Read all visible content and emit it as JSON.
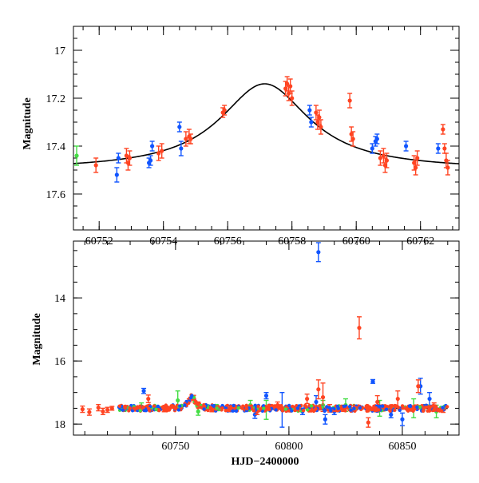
{
  "chart_data": [
    {
      "type": "scatter",
      "panel": "top",
      "ylabel": "Magnitude",
      "xlabel": "",
      "xlim": [
        60751.2,
        60763.2
      ],
      "ylim": [
        17.75,
        16.9
      ],
      "y_inverted": true,
      "xticks": [
        60752,
        60754,
        60756,
        60758,
        60760,
        60762
      ],
      "yticks": [
        17,
        17.2,
        17.4,
        17.6
      ],
      "model_curve": {
        "color": "#000000",
        "base": 17.5,
        "peak_mag": 17.14,
        "peak_x": 60757.15
      },
      "series": [
        {
          "color": "#ff4422",
          "points": [
            [
              60751.9,
              17.48,
              0.03
            ],
            [
              60752.85,
              17.44,
              0.03
            ],
            [
              60752.9,
              17.47,
              0.03
            ],
            [
              60752.95,
              17.45,
              0.03
            ],
            [
              60753.85,
              17.43,
              0.03
            ],
            [
              60753.95,
              17.42,
              0.03
            ],
            [
              60754.7,
              17.37,
              0.03
            ],
            [
              60754.8,
              17.36,
              0.03
            ],
            [
              60754.85,
              17.37,
              0.02
            ],
            [
              60755.85,
              17.26,
              0.02
            ],
            [
              60755.9,
              17.25,
              0.02
            ],
            [
              60757.8,
              17.16,
              0.03
            ],
            [
              60757.85,
              17.14,
              0.03
            ],
            [
              60757.9,
              17.18,
              0.03
            ],
            [
              60757.95,
              17.15,
              0.03
            ],
            [
              60758.0,
              17.2,
              0.03
            ],
            [
              60758.75,
              17.26,
              0.03
            ],
            [
              60758.8,
              17.3,
              0.03
            ],
            [
              60758.85,
              17.28,
              0.03
            ],
            [
              60758.9,
              17.32,
              0.03
            ],
            [
              60759.8,
              17.21,
              0.03
            ],
            [
              60759.85,
              17.35,
              0.03
            ],
            [
              60759.9,
              17.37,
              0.03
            ],
            [
              60760.75,
              17.45,
              0.03
            ],
            [
              60760.85,
              17.44,
              0.03
            ],
            [
              60760.9,
              17.48,
              0.03
            ],
            [
              60760.95,
              17.46,
              0.03
            ],
            [
              60761.8,
              17.47,
              0.03
            ],
            [
              60761.85,
              17.49,
              0.03
            ],
            [
              60761.9,
              17.45,
              0.03
            ],
            [
              60762.7,
              17.33,
              0.02
            ],
            [
              60762.75,
              17.41,
              0.02
            ],
            [
              60762.8,
              17.46,
              0.03
            ],
            [
              60762.85,
              17.49,
              0.03
            ]
          ]
        },
        {
          "color": "#1155ff",
          "points": [
            [
              60752.55,
              17.52,
              0.03
            ],
            [
              60752.6,
              17.45,
              0.02
            ],
            [
              60753.55,
              17.47,
              0.02
            ],
            [
              60753.6,
              17.46,
              0.02
            ],
            [
              60753.65,
              17.4,
              0.02
            ],
            [
              60754.5,
              17.32,
              0.02
            ],
            [
              60754.55,
              17.41,
              0.03
            ],
            [
              60758.55,
              17.25,
              0.02
            ],
            [
              60758.6,
              17.3,
              0.02
            ],
            [
              60760.5,
              17.41,
              0.02
            ],
            [
              60760.6,
              17.38,
              0.02
            ],
            [
              60760.65,
              17.37,
              0.02
            ],
            [
              60761.55,
              17.4,
              0.02
            ],
            [
              60762.55,
              17.41,
              0.02
            ]
          ]
        },
        {
          "color": "#44dd44",
          "points": [
            [
              60751.3,
              17.44,
              0.04
            ]
          ]
        }
      ]
    },
    {
      "type": "scatter",
      "panel": "bottom",
      "ylabel": "Magnitude",
      "xlabel": "HJD−2400000",
      "xlim": [
        60705,
        60875
      ],
      "ylim": [
        18.35,
        12.2
      ],
      "y_inverted": true,
      "xticks": [
        60750,
        60800,
        60850
      ],
      "yticks": [
        14,
        16,
        18
      ],
      "model_curve": {
        "color": "#000000",
        "from_x": 60725,
        "to_x": 60870,
        "base": 17.5,
        "peak_mag": 17.14,
        "peak_x": 60757.15
      },
      "series": [
        {
          "color": "#ff4422",
          "points": [
            [
              60709,
              17.53,
              0.1
            ],
            [
              60712,
              17.62,
              0.1
            ],
            [
              60716,
              17.48,
              0.1
            ],
            [
              60718,
              17.6,
              0.1
            ],
            [
              60720,
              17.55,
              0.08
            ],
            [
              60722,
              17.5,
              0.06
            ],
            [
              60732,
              17.52,
              0.07
            ],
            [
              60736,
              17.5,
              0.07
            ],
            [
              60738,
              17.2,
              0.12
            ],
            [
              60745,
              17.55,
              0.06
            ],
            [
              60752,
              17.48,
              0.05
            ],
            [
              60756,
              17.25,
              0.05
            ],
            [
              60758,
              17.15,
              0.06
            ],
            [
              60760,
              17.35,
              0.05
            ],
            [
              60766,
              17.55,
              0.06
            ],
            [
              60775,
              17.53,
              0.06
            ],
            [
              60786,
              17.6,
              0.1
            ],
            [
              60795,
              17.4,
              0.1
            ],
            [
              60808,
              17.2,
              0.15
            ],
            [
              60812,
              17.5,
              0.08
            ],
            [
              60813,
              16.9,
              0.3
            ],
            [
              60815,
              17.15,
              0.45
            ],
            [
              60818,
              17.5,
              0.12
            ],
            [
              60824,
              17.5,
              0.1
            ],
            [
              60831,
              14.95,
              0.35
            ],
            [
              60835,
              17.95,
              0.15
            ],
            [
              60839,
              17.3,
              0.2
            ],
            [
              60848,
              17.2,
              0.25
            ],
            [
              60857,
              16.8,
              0.2
            ],
            [
              60864,
              17.45,
              0.12
            ],
            [
              60868,
              17.55,
              0.08
            ]
          ]
        },
        {
          "color": "#1155ff",
          "points": [
            [
              60736,
              16.95,
              0.08
            ],
            [
              60774,
              17.55,
              0.06
            ],
            [
              60785,
              17.7,
              0.12
            ],
            [
              60790,
              17.1,
              0.1
            ],
            [
              60797,
              17.55,
              0.55
            ],
            [
              60806,
              17.6,
              0.1
            ],
            [
              60812,
              17.3,
              0.2
            ],
            [
              60813,
              12.55,
              0.3
            ],
            [
              60816,
              17.85,
              0.15
            ],
            [
              60820,
              17.6,
              0.1
            ],
            [
              60837,
              16.65,
              0.06
            ],
            [
              60845,
              17.7,
              0.1
            ],
            [
              60850,
              17.85,
              0.2
            ],
            [
              60858,
              16.8,
              0.25
            ],
            [
              60862,
              17.2,
              0.2
            ]
          ]
        },
        {
          "color": "#44dd44",
          "points": [
            [
              60735,
              17.45,
              0.12
            ],
            [
              60751,
              17.25,
              0.3
            ],
            [
              60760,
              17.6,
              0.12
            ],
            [
              60783,
              17.4,
              0.15
            ],
            [
              60790,
              17.55,
              0.3
            ],
            [
              60815,
              17.4,
              0.15
            ],
            [
              60825,
              17.4,
              0.2
            ],
            [
              60840,
              17.5,
              0.25
            ],
            [
              60855,
              17.5,
              0.3
            ],
            [
              60865,
              17.6,
              0.2
            ]
          ]
        }
      ]
    }
  ]
}
